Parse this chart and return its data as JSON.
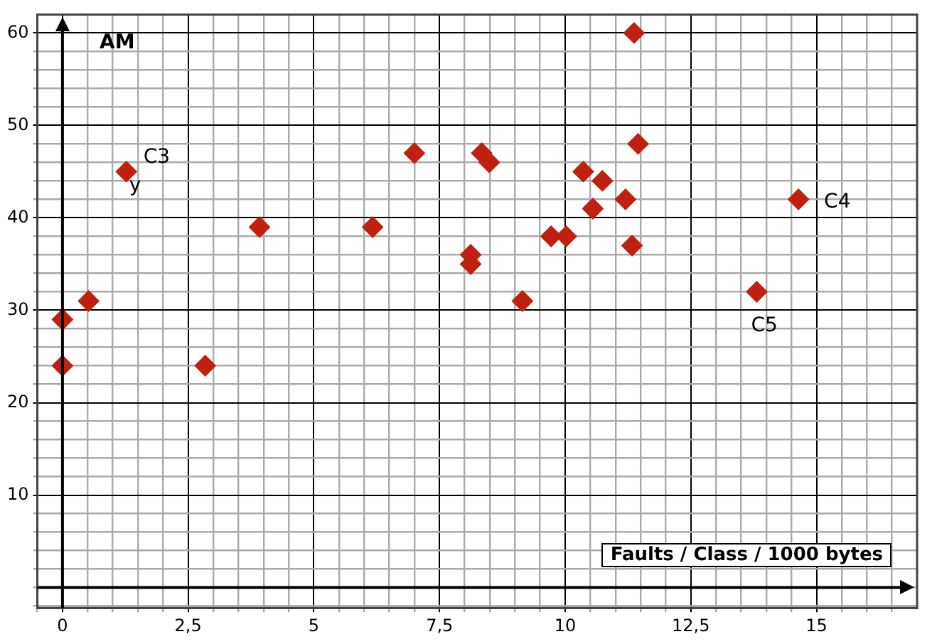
{
  "chart_data": {
    "type": "scatter",
    "title": "AM",
    "xlabel": "Faults / Class / 1000 bytes",
    "x": [
      0,
      0,
      0.52,
      1.27,
      2.84,
      3.92,
      6.17,
      7.0,
      8.12,
      8.12,
      8.34,
      8.49,
      9.15,
      9.72,
      10.02,
      10.36,
      10.55,
      10.74,
      11.2,
      11.33,
      11.37,
      11.45,
      13.81,
      14.64
    ],
    "series": [
      {
        "color": "#c0200f",
        "values": [
          29,
          24,
          31,
          45,
          24,
          39,
          39,
          47,
          36,
          35,
          47,
          46,
          31,
          38,
          38,
          45,
          41,
          44,
          42,
          37,
          60,
          48,
          32,
          42
        ]
      }
    ],
    "annotations": [
      {
        "text": "C3",
        "x": 1.27,
        "y": 45
      },
      {
        "text": "y",
        "x": 1.27,
        "y": 45
      },
      {
        "text": "C4",
        "x": 14.64,
        "y": 42
      },
      {
        "text": "C5",
        "x": 13.81,
        "y": 32
      }
    ],
    "xlim": [
      -0.5,
      17
    ],
    "ylim": [
      -2.2,
      62
    ],
    "xticks": [
      {
        "value": -0.5,
        "label": null
      },
      {
        "value": 0,
        "label": "0"
      },
      {
        "value": 0.5,
        "label": null
      },
      {
        "value": 1,
        "label": null
      },
      {
        "value": 1.5,
        "label": null
      },
      {
        "value": 2,
        "label": null
      },
      {
        "value": 2.5,
        "label": "2,5"
      },
      {
        "value": 3,
        "label": null
      },
      {
        "value": 3.5,
        "label": null
      },
      {
        "value": 4,
        "label": null
      },
      {
        "value": 4.5,
        "label": null
      },
      5,
      {
        "value": 5.5,
        "label": null
      },
      {
        "value": 6,
        "label": null
      },
      {
        "value": 6.5,
        "label": null
      },
      {
        "value": 7,
        "label": null
      },
      {
        "value": 7.5,
        "label": "7,5"
      },
      {
        "value": 8,
        "label": null
      },
      {
        "value": 8.5,
        "label": null
      },
      {
        "value": 9,
        "label": null
      },
      {
        "value": 9.5,
        "label": null
      },
      10,
      {
        "value": 10.5,
        "label": null
      },
      {
        "value": 11,
        "label": null
      },
      {
        "value": 11.5,
        "label": null
      },
      {
        "value": 12,
        "label": null
      },
      {
        "value": 12.5,
        "label": "12,5"
      },
      {
        "value": 13,
        "label": null
      },
      {
        "value": 13.5,
        "label": null
      },
      {
        "value": 14,
        "label": null
      },
      {
        "value": 14.5,
        "label": null
      },
      15,
      {
        "value": 15.5,
        "label": null
      },
      {
        "value": 16,
        "label": null
      },
      {
        "value": 16.5,
        "label": null
      }
    ],
    "yticks": [
      {
        "value": -2,
        "label": null
      },
      {
        "value": 0,
        "label": null
      },
      {
        "value": 2,
        "label": null
      },
      {
        "value": 4,
        "label": null
      },
      {
        "value": 6,
        "label": null
      },
      {
        "value": 8,
        "label": null
      },
      10,
      {
        "value": 12,
        "label": null
      },
      {
        "value": 14,
        "label": null
      },
      {
        "value": 16,
        "label": null
      },
      {
        "value": 18,
        "label": null
      },
      20,
      {
        "value": 22,
        "label": null
      },
      {
        "value": 24,
        "label": null
      },
      {
        "value": 26,
        "label": null
      },
      {
        "value": 28,
        "label": null
      },
      30,
      {
        "value": 32,
        "label": null
      },
      {
        "value": 34,
        "label": null
      },
      {
        "value": 36,
        "label": null
      },
      {
        "value": 38,
        "label": null
      },
      40,
      {
        "value": 42,
        "label": null
      },
      {
        "value": 44,
        "label": null
      },
      {
        "value": 46,
        "label": null
      },
      {
        "value": 48,
        "label": null
      },
      50,
      {
        "value": 52,
        "label": null
      },
      {
        "value": 54,
        "label": null
      },
      {
        "value": 56,
        "label": null
      },
      {
        "value": 58,
        "label": null
      },
      60
    ],
    "grid": true,
    "legend": false,
    "marker": "diamond"
  }
}
